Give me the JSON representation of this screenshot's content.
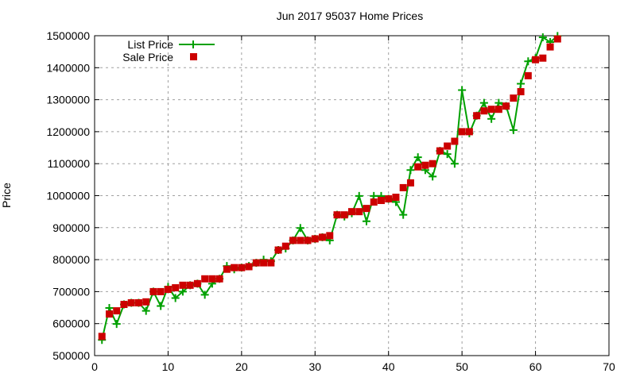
{
  "chart_data": {
    "type": "line",
    "title": "Jun 2017 95037 Home Prices",
    "xlabel": "",
    "ylabel": "Price",
    "xlim": [
      0,
      70
    ],
    "ylim": [
      500000,
      1500000
    ],
    "xticks": [
      0,
      10,
      20,
      30,
      40,
      50,
      60,
      70
    ],
    "yticks": [
      500000,
      600000,
      700000,
      800000,
      900000,
      1000000,
      1100000,
      1200000,
      1300000,
      1400000,
      1500000
    ],
    "grid": true,
    "legend_position": "top-left",
    "colors": {
      "list": "#00a000",
      "sale": "#cc0000"
    },
    "series": [
      {
        "name": "List Price",
        "style": "line+points",
        "x": [
          1,
          2,
          3,
          4,
          5,
          6,
          7,
          8,
          9,
          10,
          11,
          12,
          13,
          14,
          15,
          16,
          17,
          18,
          19,
          20,
          21,
          22,
          23,
          24,
          25,
          26,
          27,
          28,
          29,
          30,
          31,
          32,
          33,
          34,
          35,
          36,
          37,
          38,
          39,
          40,
          41,
          42,
          43,
          44,
          45,
          46,
          47,
          48,
          49,
          50,
          51,
          52,
          53,
          54,
          55,
          56,
          57,
          58,
          59,
          60,
          61,
          62,
          63
        ],
        "values": [
          549000,
          649000,
          599000,
          660000,
          665000,
          665000,
          640000,
          700000,
          655000,
          715000,
          680000,
          700000,
          720000,
          725000,
          690000,
          725000,
          740000,
          780000,
          770000,
          775000,
          780000,
          790000,
          800000,
          795000,
          830000,
          835000,
          860000,
          899000,
          860000,
          865000,
          870000,
          860000,
          940000,
          935000,
          945000,
          999000,
          920000,
          999000,
          999000,
          990000,
          980000,
          940000,
          1080000,
          1120000,
          1080000,
          1060000,
          1140000,
          1130000,
          1100000,
          1330000,
          1195000,
          1250000,
          1290000,
          1240000,
          1290000,
          1280000,
          1205000,
          1350000,
          1420000,
          1430000,
          1495000,
          1480000,
          1499000
        ]
      },
      {
        "name": "Sale Price",
        "style": "points",
        "x": [
          1,
          2,
          3,
          4,
          5,
          6,
          7,
          8,
          9,
          10,
          11,
          12,
          13,
          14,
          15,
          16,
          17,
          18,
          19,
          20,
          21,
          22,
          23,
          24,
          25,
          26,
          27,
          28,
          29,
          30,
          31,
          32,
          33,
          34,
          35,
          36,
          37,
          38,
          39,
          40,
          41,
          42,
          43,
          44,
          45,
          46,
          47,
          48,
          49,
          50,
          51,
          52,
          53,
          54,
          55,
          56,
          57,
          58,
          59,
          60,
          61,
          62,
          63
        ],
        "values": [
          560000,
          630000,
          640000,
          660000,
          665000,
          665000,
          668000,
          700000,
          700000,
          707000,
          712000,
          720000,
          720000,
          725000,
          740000,
          740000,
          740000,
          770000,
          775000,
          775000,
          778000,
          790000,
          790000,
          790000,
          830000,
          842000,
          860000,
          860000,
          860000,
          865000,
          870000,
          875000,
          940000,
          940000,
          950000,
          950000,
          960000,
          980000,
          985000,
          990000,
          995000,
          1025000,
          1040000,
          1090000,
          1095000,
          1100000,
          1140000,
          1155000,
          1170000,
          1200000,
          1200000,
          1250000,
          1265000,
          1270000,
          1270000,
          1280000,
          1305000,
          1325000,
          1375000,
          1425000,
          1430000,
          1465000,
          1490000
        ]
      }
    ]
  },
  "title": "Jun 2017 95037 Home Prices",
  "ylabel": "Price",
  "legend": {
    "list": "List Price",
    "sale": "Sale Price"
  }
}
